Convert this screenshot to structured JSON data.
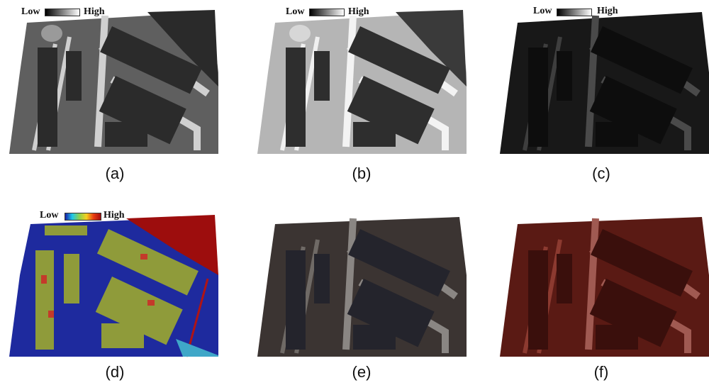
{
  "panels": [
    {
      "caption": "(a)",
      "legend_low": "Low",
      "legend_high": "High",
      "scheme": "gray"
    },
    {
      "caption": "(b)",
      "legend_low": "Low",
      "legend_high": "High",
      "scheme": "gray-light"
    },
    {
      "caption": "(c)",
      "legend_low": "Low",
      "legend_high": "High",
      "scheme": "dark"
    },
    {
      "caption": "(d)",
      "legend_low": "Low",
      "legend_high": "High",
      "scheme": "jet"
    },
    {
      "caption": "(e)",
      "scheme": "rgb"
    },
    {
      "caption": "(f)",
      "scheme": "red"
    }
  ],
  "colors": {
    "gray": "#6e6e6e",
    "gray_light": "#bdbdbd",
    "dark": "#151515",
    "jet_low": "#1a1fa8",
    "jet_mid": "#9aa53a",
    "jet_high": "#a50d0d",
    "rgb": "#3b3432",
    "red": "#5a1a14"
  }
}
